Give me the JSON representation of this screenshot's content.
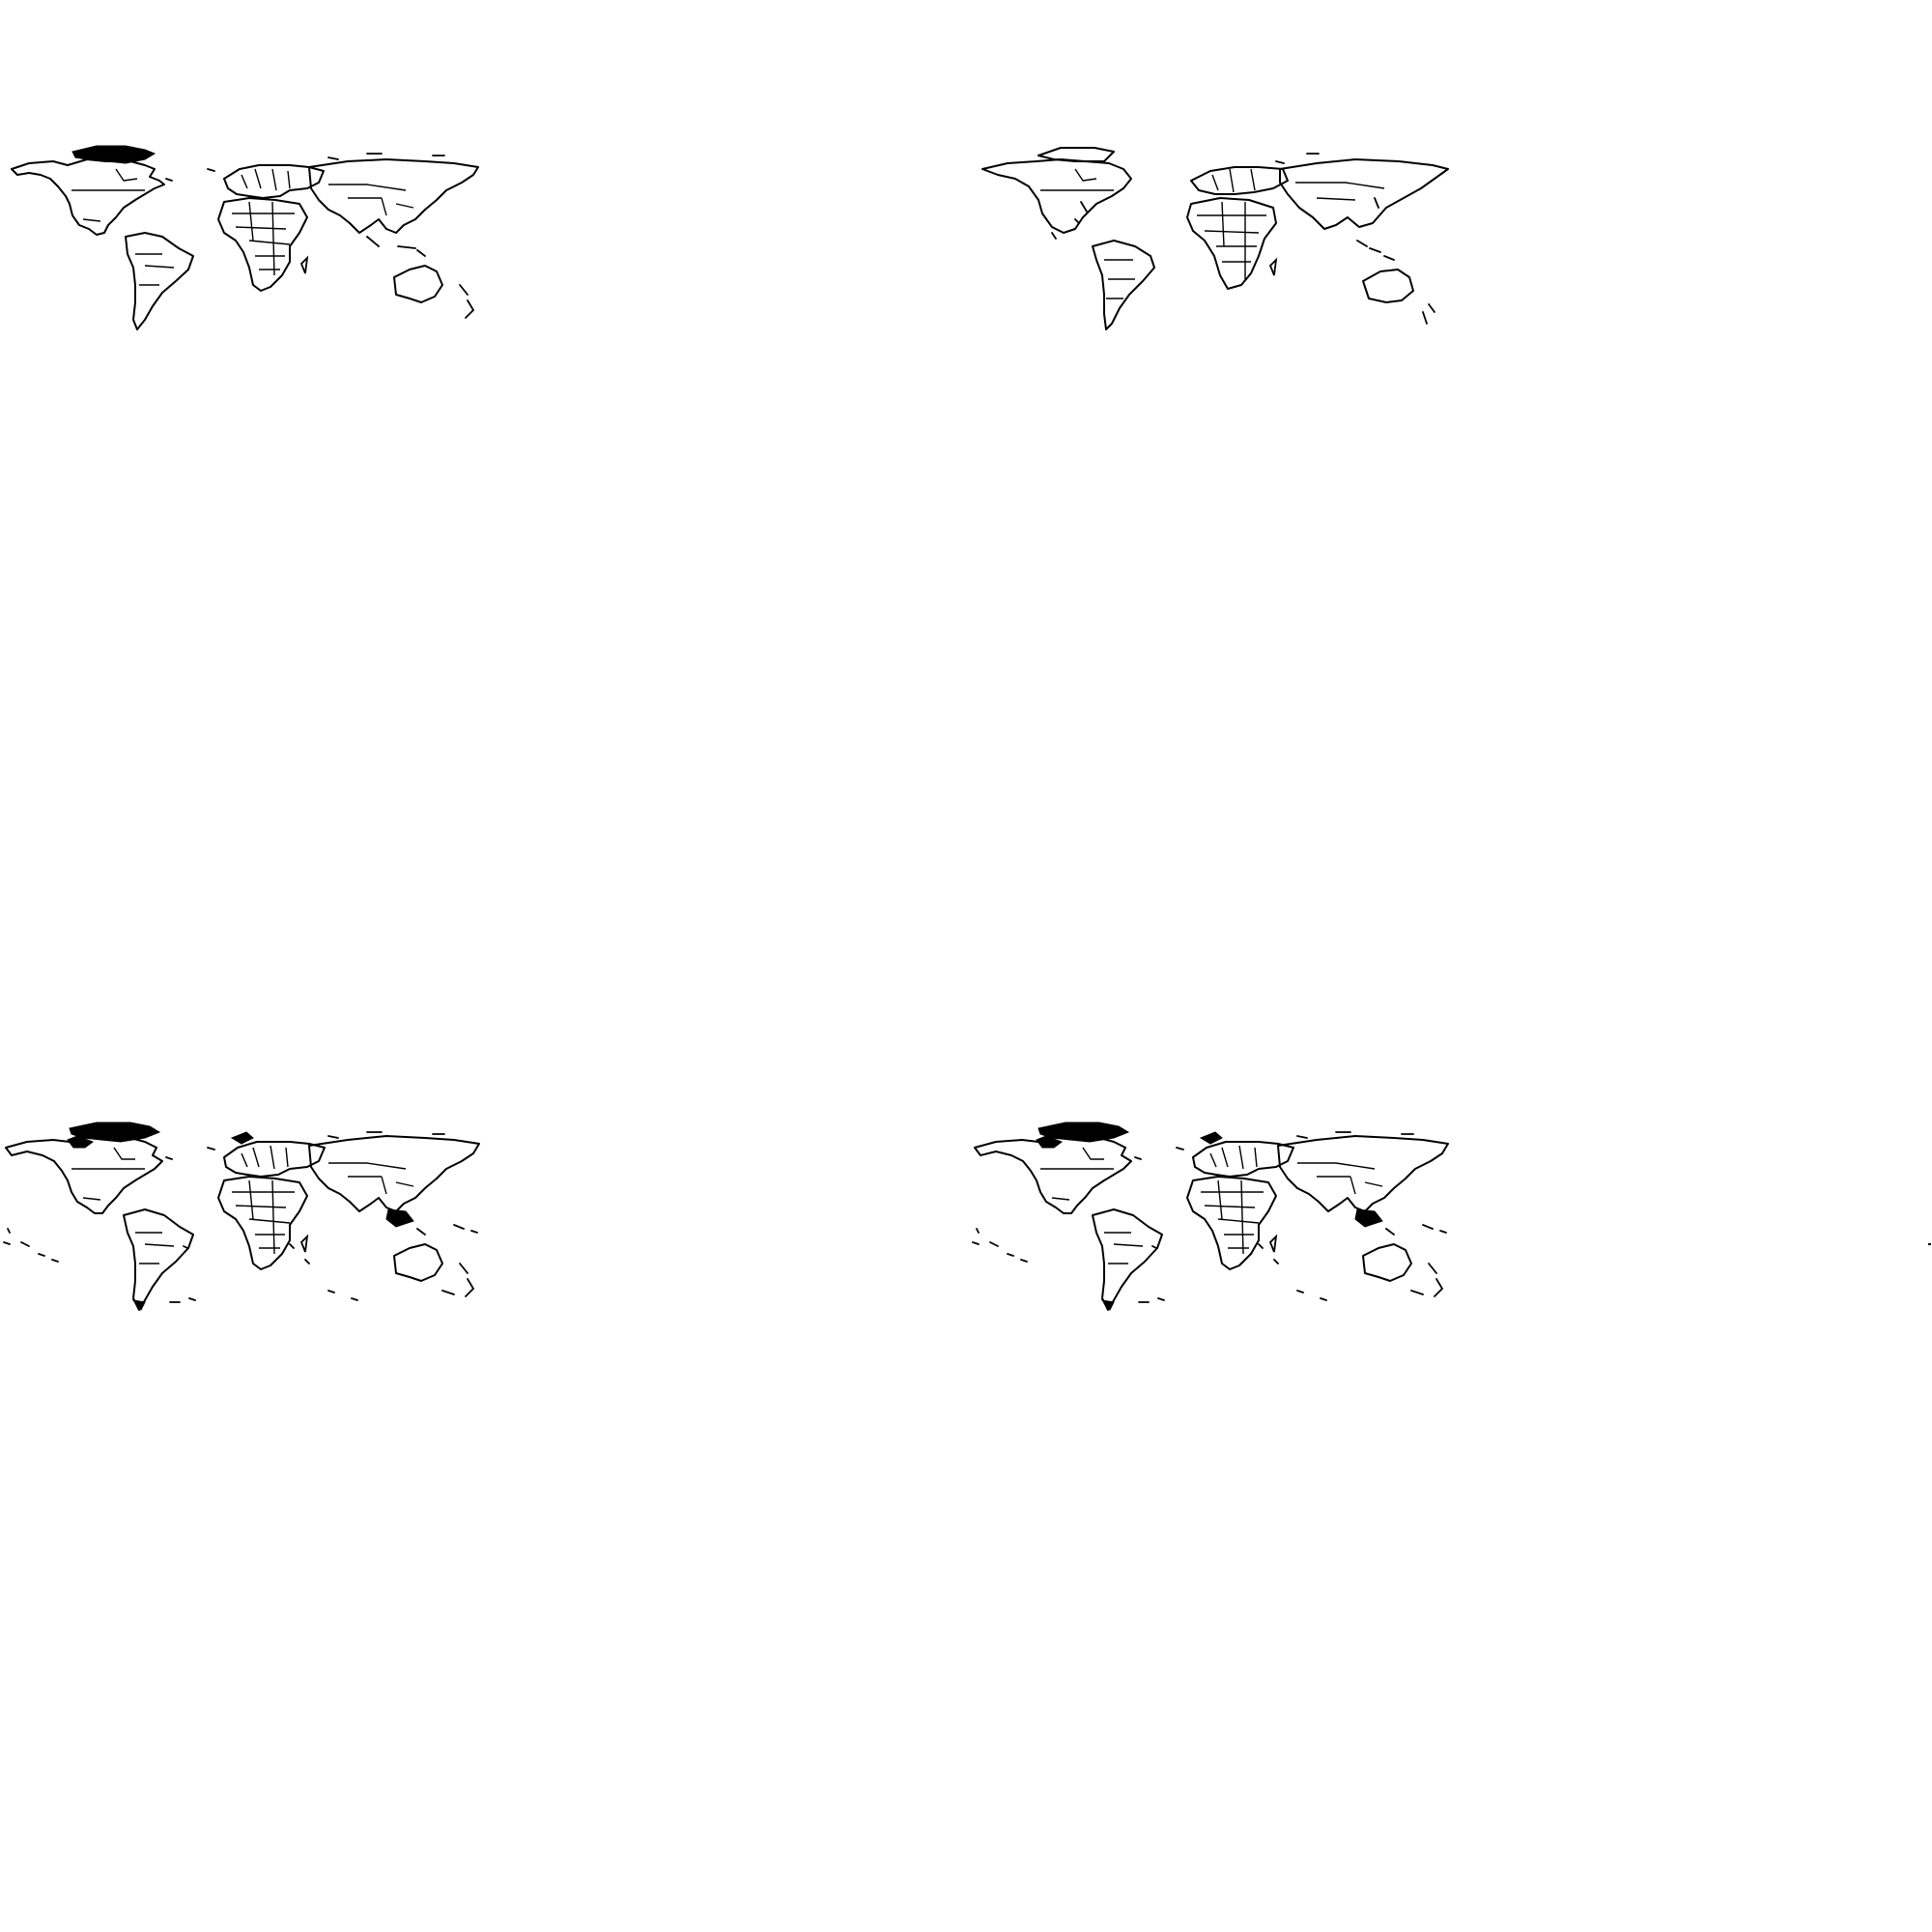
{
  "page": {
    "background": "#ffffff"
  },
  "maps": [
    {
      "id": "world-outline-1",
      "style": "country-borders",
      "stroke": "#000000",
      "detail": "standard",
      "graticule": false,
      "labels": false
    },
    {
      "id": "world-outline-2",
      "style": "simplified-borders",
      "stroke": "#000000",
      "detail": "coarse",
      "graticule": false,
      "labels": false
    },
    {
      "id": "world-outline-3",
      "style": "country-borders-with-islands",
      "stroke": "#000000",
      "detail": "high",
      "graticule": false,
      "labels": false
    },
    {
      "id": "world-outline-4",
      "style": "country-borders-with-islands",
      "stroke": "#000000",
      "detail": "high",
      "graticule": false,
      "labels": false
    }
  ]
}
